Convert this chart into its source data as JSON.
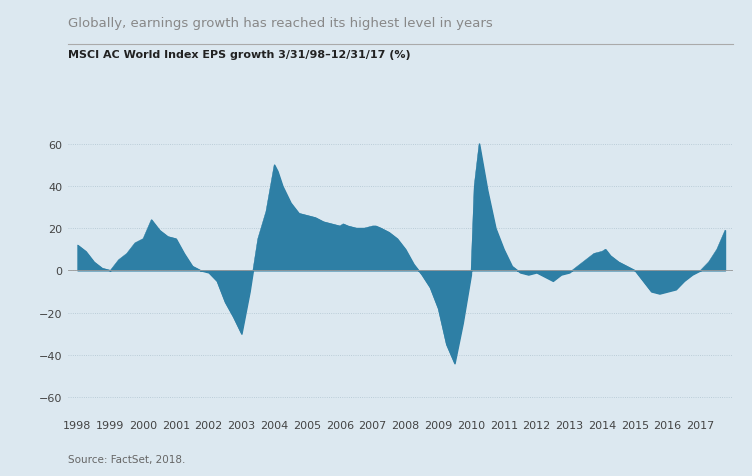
{
  "title": "Globally, earnings growth has reached its highest level in years",
  "subtitle": "MSCI AC World Index EPS growth 3/31/98–12/31/17 (%)",
  "source": "Source: FactSet, 2018.",
  "fill_color": "#2e7fa5",
  "background_color": "#dce8f0",
  "grid_color": "#b0c4d0",
  "yticks": [
    -60,
    -40,
    -20,
    0,
    20,
    40,
    60
  ],
  "ylim": [
    -68,
    72
  ],
  "x_labels": [
    "1998",
    "1999",
    "2000",
    "2001",
    "2002",
    "2003",
    "2004",
    "2005",
    "2006",
    "2007",
    "2008",
    "2009",
    "2010",
    "2011",
    "2012",
    "2013",
    "2014",
    "2015",
    "2016",
    "2017"
  ],
  "x_values": [
    1998.0,
    1998.25,
    1998.5,
    1998.75,
    1999.0,
    1999.25,
    1999.5,
    1999.75,
    2000.0,
    2000.25,
    2000.5,
    2000.75,
    2001.0,
    2001.25,
    2001.5,
    2001.75,
    2002.0,
    2002.25,
    2002.5,
    2002.75,
    2003.0,
    2003.25,
    2003.5,
    2003.75,
    2004.0,
    2004.1,
    2004.25,
    2004.5,
    2004.75,
    2005.0,
    2005.25,
    2005.5,
    2005.75,
    2006.0,
    2006.1,
    2006.25,
    2006.5,
    2006.75,
    2007.0,
    2007.1,
    2007.25,
    2007.5,
    2007.75,
    2008.0,
    2008.25,
    2008.5,
    2008.75,
    2009.0,
    2009.25,
    2009.5,
    2009.75,
    2010.0,
    2010.1,
    2010.25,
    2010.5,
    2010.75,
    2011.0,
    2011.25,
    2011.5,
    2011.75,
    2012.0,
    2012.25,
    2012.5,
    2012.75,
    2013.0,
    2013.25,
    2013.5,
    2013.75,
    2014.0,
    2014.1,
    2014.25,
    2014.5,
    2014.75,
    2015.0,
    2015.25,
    2015.5,
    2015.75,
    2016.0,
    2016.25,
    2016.5,
    2016.75,
    2017.0,
    2017.25,
    2017.5,
    2017.75
  ],
  "y_values": [
    12,
    9,
    4,
    1,
    0,
    5,
    8,
    13,
    15,
    24,
    19,
    16,
    15,
    8,
    2,
    0,
    -1,
    -5,
    -15,
    -22,
    -30,
    -10,
    15,
    28,
    50,
    47,
    40,
    32,
    27,
    26,
    25,
    23,
    22,
    21,
    22,
    21,
    20,
    20,
    21,
    21,
    20,
    18,
    15,
    10,
    3,
    -2,
    -8,
    -18,
    -35,
    -44,
    -25,
    -2,
    40,
    60,
    38,
    20,
    10,
    2,
    -1,
    -2,
    -1,
    -3,
    -5,
    -2,
    -1,
    2,
    5,
    8,
    9,
    10,
    7,
    4,
    2,
    0,
    -5,
    -10,
    -11,
    -10,
    -9,
    -5,
    -2,
    0,
    4,
    10,
    19
  ]
}
